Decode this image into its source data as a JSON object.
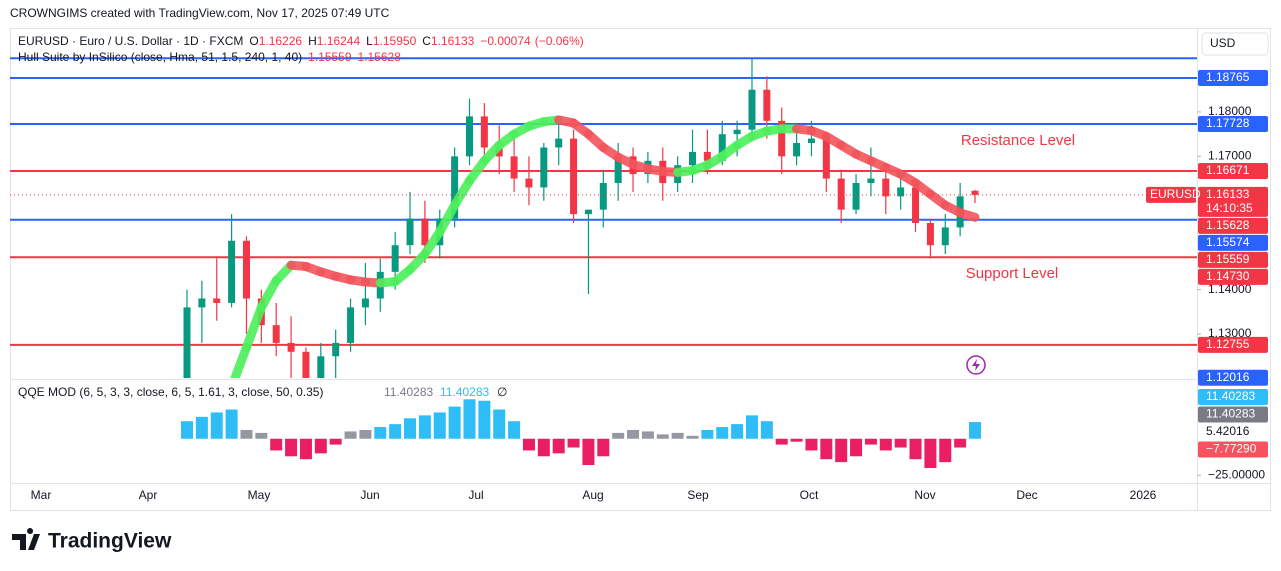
{
  "header": "CROWNGIMS created with TradingView.com, Nov 17, 2025 07:49 UTC",
  "footer_logo": "TradingView",
  "chart_data": [
    {
      "type": "candlestick",
      "symbol_title": "EURUSD · Euro / U.S. Dollar · 1D · FXCM",
      "currency": "USD",
      "ohlc": [
        {
          "name": "O",
          "value": 1.16226
        },
        {
          "name": "H",
          "value": 1.16244
        },
        {
          "name": "L",
          "value": 1.1595,
          "label": "1.15950"
        },
        {
          "name": "C",
          "value": 1.16133
        }
      ],
      "change": {
        "value": -0.00074,
        "label": "−0.00074"
      },
      "change_pct": {
        "value": -0.06,
        "label": "(−0.06%)"
      },
      "ylim": [
        1.1201,
        1.1989
      ],
      "yticks": [
        {
          "value": 1.13,
          "label": "1.13000"
        },
        {
          "value": 1.14,
          "label": "1.14000"
        },
        {
          "value": 1.17,
          "label": "1.17000"
        },
        {
          "value": 1.18,
          "label": "1.18000"
        }
      ],
      "grid": false,
      "time_axis": [
        "Mar",
        "Apr",
        "May",
        "Jun",
        "Jul",
        "Aug",
        "Sep",
        "Oct",
        "Nov",
        "Dec",
        "2026"
      ],
      "up_color": "#089981",
      "down_color": "#f23645",
      "candles": {
        "open": [
          1.12,
          1.136,
          1.138,
          1.137,
          1.151,
          1.138,
          1.132,
          1.128,
          1.126,
          1.118,
          1.125,
          1.128,
          1.136,
          1.138,
          1.144,
          1.15,
          1.156,
          1.15,
          1.156,
          1.17,
          1.179,
          1.172,
          1.17,
          1.165,
          1.163,
          1.172,
          1.174,
          1.157,
          1.158,
          1.164,
          1.17,
          1.166,
          1.169,
          1.164,
          1.168,
          1.171,
          1.169,
          1.175,
          1.176,
          1.185,
          1.178,
          1.17,
          1.173,
          1.174,
          1.165,
          1.158,
          1.164,
          1.165,
          1.161,
          1.163,
          1.155,
          1.15,
          1.154,
          1.16226
        ],
        "high": [
          1.14,
          1.142,
          1.147,
          1.157,
          1.152,
          1.14,
          1.137,
          1.134,
          1.127,
          1.128,
          1.131,
          1.138,
          1.146,
          1.147,
          1.153,
          1.162,
          1.16,
          1.158,
          1.172,
          1.183,
          1.182,
          1.177,
          1.174,
          1.17,
          1.173,
          1.179,
          1.176,
          1.158,
          1.167,
          1.173,
          1.172,
          1.171,
          1.172,
          1.17,
          1.176,
          1.176,
          1.178,
          1.178,
          1.192,
          1.188,
          1.181,
          1.177,
          1.178,
          1.175,
          1.167,
          1.166,
          1.172,
          1.168,
          1.166,
          1.164,
          1.156,
          1.157,
          1.164,
          1.16244
        ],
        "low": [
          1.118,
          1.128,
          1.133,
          1.136,
          1.13,
          1.128,
          1.125,
          1.12,
          1.115,
          1.116,
          1.12,
          1.126,
          1.132,
          1.135,
          1.14,
          1.148,
          1.146,
          1.147,
          1.154,
          1.168,
          1.17,
          1.166,
          1.162,
          1.159,
          1.16,
          1.168,
          1.155,
          1.139,
          1.154,
          1.16,
          1.162,
          1.164,
          1.16,
          1.162,
          1.164,
          1.166,
          1.168,
          1.17,
          1.174,
          1.174,
          1.166,
          1.168,
          1.17,
          1.162,
          1.155,
          1.157,
          1.161,
          1.157,
          1.158,
          1.153,
          1.147,
          1.148,
          1.152,
          1.1595
        ],
        "close": [
          1.136,
          1.138,
          1.137,
          1.151,
          1.138,
          1.132,
          1.128,
          1.126,
          1.118,
          1.125,
          1.128,
          1.136,
          1.138,
          1.144,
          1.15,
          1.156,
          1.15,
          1.156,
          1.17,
          1.179,
          1.172,
          1.17,
          1.165,
          1.163,
          1.172,
          1.174,
          1.157,
          1.158,
          1.164,
          1.17,
          1.166,
          1.169,
          1.164,
          1.168,
          1.171,
          1.169,
          1.175,
          1.176,
          1.185,
          1.178,
          1.17,
          1.173,
          1.174,
          1.165,
          1.158,
          1.164,
          1.165,
          1.161,
          1.163,
          1.155,
          1.15,
          1.154,
          1.161,
          1.16133
        ]
      },
      "hull": {
        "title": "Hull Suite by InSilico (close, Hma, 51, 1.5, 240, 1, 40)",
        "legend_values": [
          1.15559,
          1.15628
        ],
        "up_color": "#4cef5c",
        "down_color": "#f2545b",
        "values": [
          null,
          null,
          1.11,
          1.118,
          1.127,
          1.136,
          1.142,
          1.1455,
          1.1452,
          1.144,
          1.143,
          1.1422,
          1.1417,
          1.1415,
          1.1418,
          1.1445,
          1.148,
          1.153,
          1.159,
          1.1645,
          1.169,
          1.1725,
          1.175,
          1.1768,
          1.1778,
          1.1782,
          1.1775,
          1.175,
          1.172,
          1.1698,
          1.1682,
          1.1672,
          1.1666,
          1.1664,
          1.1668,
          1.168,
          1.17,
          1.1725,
          1.1745,
          1.1757,
          1.1762,
          1.1762,
          1.1758,
          1.1745,
          1.1725,
          1.1705,
          1.169,
          1.1675,
          1.166,
          1.164,
          1.1615,
          1.159,
          1.1573,
          1.15628
        ]
      },
      "levels": [
        {
          "value": 1.1921,
          "color": "#2962ff"
        },
        {
          "value": 1.18765,
          "color": "#2962ff"
        },
        {
          "value": 1.17728,
          "color": "#2962ff"
        },
        {
          "value": 1.16671,
          "color": "#f23645"
        },
        {
          "value": 1.15574,
          "color": "#2962ff"
        },
        {
          "value": 1.1473,
          "color": "#f23645"
        },
        {
          "value": 1.12755,
          "color": "#f23645"
        }
      ],
      "price_tags": [
        {
          "value": 1.18765,
          "color": "#2962ff"
        },
        {
          "value": 1.17728,
          "color": "#2962ff"
        },
        {
          "value": 1.16671,
          "color": "#f23645"
        },
        {
          "value": 1.16133,
          "color": "#f23645",
          "symbol": "EURUSD",
          "countdown": "14:10:35"
        },
        {
          "value": 1.15628,
          "color": "#f23645"
        },
        {
          "value": 1.15574,
          "color": "#2962ff"
        },
        {
          "value": 1.15559,
          "color": "#f23645"
        },
        {
          "value": 1.1473,
          "label": "1.14730",
          "color": "#f23645"
        },
        {
          "value": 1.12755,
          "color": "#f23645"
        },
        {
          "value": 1.12016,
          "color": "#2962ff"
        }
      ],
      "annotations": [
        "Resistance Level",
        "Support Level"
      ]
    },
    {
      "type": "histogram",
      "title": "QQE MOD (6, 5, 3, 3, close, 6, 5, 1.61, 3, close, 50, 0.35)",
      "legend_values": [
        11.40283,
        11.40283
      ],
      "legend_symbol": "∅",
      "ylim": [
        -29.6,
        40.2
      ],
      "yticks": [
        {
          "value": -25,
          "label": "−25.00000"
        }
      ],
      "values": [
        12,
        15,
        18,
        20,
        6,
        4,
        -8,
        -12,
        -14,
        -10,
        -4,
        5,
        6,
        8,
        10,
        14,
        16,
        18,
        22,
        27,
        26,
        20,
        12,
        -8,
        -12,
        -10,
        -6,
        -18,
        -12,
        4,
        6,
        5,
        3,
        4,
        2,
        6,
        8,
        10,
        16,
        12,
        -4,
        -2,
        -8,
        -14,
        -16,
        -12,
        -4,
        -8,
        -6,
        -14,
        -20,
        -16,
        -6,
        11.40283
      ],
      "colors": [
        "#2ebdf6",
        "#2ebdf6",
        "#2ebdf6",
        "#2ebdf6",
        "#9598a1",
        "#9598a1",
        "#e91e63",
        "#e91e63",
        "#e91e63",
        "#e91e63",
        "#e91e63",
        "#9598a1",
        "#9598a1",
        "#2ebdf6",
        "#2ebdf6",
        "#2ebdf6",
        "#2ebdf6",
        "#2ebdf6",
        "#2ebdf6",
        "#2ebdf6",
        "#2ebdf6",
        "#2ebdf6",
        "#2ebdf6",
        "#e91e63",
        "#e91e63",
        "#e91e63",
        "#e91e63",
        "#e91e63",
        "#e91e63",
        "#9598a1",
        "#9598a1",
        "#9598a1",
        "#9598a1",
        "#9598a1",
        "#9598a1",
        "#2ebdf6",
        "#2ebdf6",
        "#2ebdf6",
        "#2ebdf6",
        "#2ebdf6",
        "#e91e63",
        "#e91e63",
        "#e91e63",
        "#e91e63",
        "#e91e63",
        "#e91e63",
        "#e91e63",
        "#e91e63",
        "#e91e63",
        "#e91e63",
        "#e91e63",
        "#e91e63",
        "#e91e63",
        "#2ebdf6"
      ],
      "price_tags": [
        {
          "value": 11.40283,
          "color": "#2ebdf6"
        },
        {
          "value": 11.40283,
          "color": "#787b86"
        },
        {
          "value": 5.42016
        },
        {
          "value": -7.7729,
          "label": "−7.77290",
          "color": "#f7525f"
        }
      ]
    }
  ]
}
